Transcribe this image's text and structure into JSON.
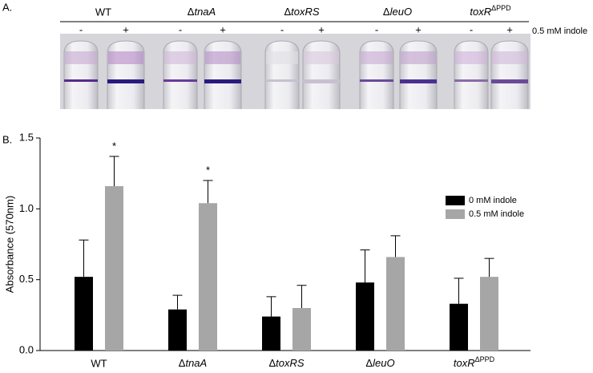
{
  "photo": {
    "panel_label": "A.",
    "strains": [
      "WT",
      "ΔtnaA",
      "ΔtoxRS",
      "ΔleuO",
      "toxRΔPPD"
    ],
    "signs": [
      "-",
      "+"
    ],
    "treatment": "0.5 mM indole"
  },
  "chart_data": {
    "type": "bar",
    "panel_label": "B.",
    "y_label": "Absorbance (570nm)",
    "categories": [
      "WT",
      "ΔtnaA",
      "ΔtoxRS",
      "ΔleuO",
      "toxRΔPPD"
    ],
    "series": [
      {
        "name": "0 mM indole",
        "color": "#000000",
        "values": [
          0.52,
          0.29,
          0.24,
          0.48,
          0.33
        ],
        "errors": [
          0.26,
          0.1,
          0.14,
          0.23,
          0.18
        ]
      },
      {
        "name": "0.5 mM indole",
        "color": "#a6a6a6",
        "values": [
          1.16,
          1.04,
          0.3,
          0.66,
          0.52
        ],
        "errors": [
          0.21,
          0.16,
          0.16,
          0.15,
          0.13
        ],
        "markers": [
          "*",
          "*",
          null,
          null,
          null
        ]
      }
    ],
    "ylim": [
      0,
      1.5
    ],
    "yticks": [
      {
        "value": 0,
        "label": "0.0"
      },
      {
        "value": 0.5,
        "label": "0.5"
      },
      {
        "value": 1,
        "label": "1.0"
      },
      {
        "value": 1.5,
        "label": "1.5"
      }
    ],
    "legend": "right"
  }
}
